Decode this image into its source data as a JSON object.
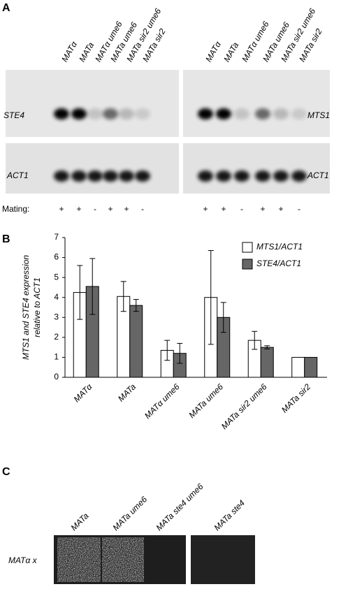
{
  "panel_a": {
    "label": "A",
    "lanes_left": [
      "MATα",
      "MATa",
      "MATα ume6",
      "MATa ume6",
      "MATa sir2 ume6",
      "MATa sir2"
    ],
    "lanes_right": [
      "MATα",
      "MATa",
      "MATα ume6",
      "MATa ume6",
      "MATa sir2 ume6",
      "MATa sir2"
    ],
    "blot_left_top": "STE4",
    "blot_left_bottom": "ACT1",
    "blot_right_top": "MTS1",
    "blot_right_bottom": "ACT1",
    "mating_label": "Mating:",
    "mating_left": [
      "+",
      "+",
      "-",
      "+",
      "+",
      "-"
    ],
    "mating_right": [
      "+",
      "+",
      "-",
      "+",
      "+",
      "-"
    ]
  },
  "chart_data": {
    "type": "bar",
    "panel_label": "B",
    "ylabel_lines": [
      "MTS1 and STE4 expression",
      "relative to ACT1"
    ],
    "categories": [
      "MATα",
      "MATa",
      "MATα ume6",
      "MATa ume6",
      "MATa sir2 ume6",
      "MATa sir2"
    ],
    "series": [
      {
        "name": "MTS1/ACT1",
        "color": "#ffffff",
        "values": [
          4.25,
          4.05,
          1.35,
          4.0,
          1.85,
          1.0
        ],
        "errors": [
          1.35,
          0.75,
          0.5,
          2.35,
          0.45,
          null
        ]
      },
      {
        "name": "STE4/ACT1",
        "color": "#666666",
        "values": [
          4.55,
          3.6,
          1.2,
          3.0,
          1.5,
          1.0
        ],
        "errors": [
          1.4,
          0.3,
          0.5,
          0.75,
          0.08,
          null
        ]
      }
    ],
    "ylim": [
      0,
      7
    ],
    "yticks": [
      0,
      1,
      2,
      3,
      4,
      5,
      6,
      7
    ],
    "legend": "top-right"
  },
  "panel_c": {
    "label": "C",
    "lanes": [
      "MATa",
      "MATa ume6",
      "MATa ste4 ume6",
      "MATa ste4"
    ],
    "row_label": "MATα x"
  }
}
